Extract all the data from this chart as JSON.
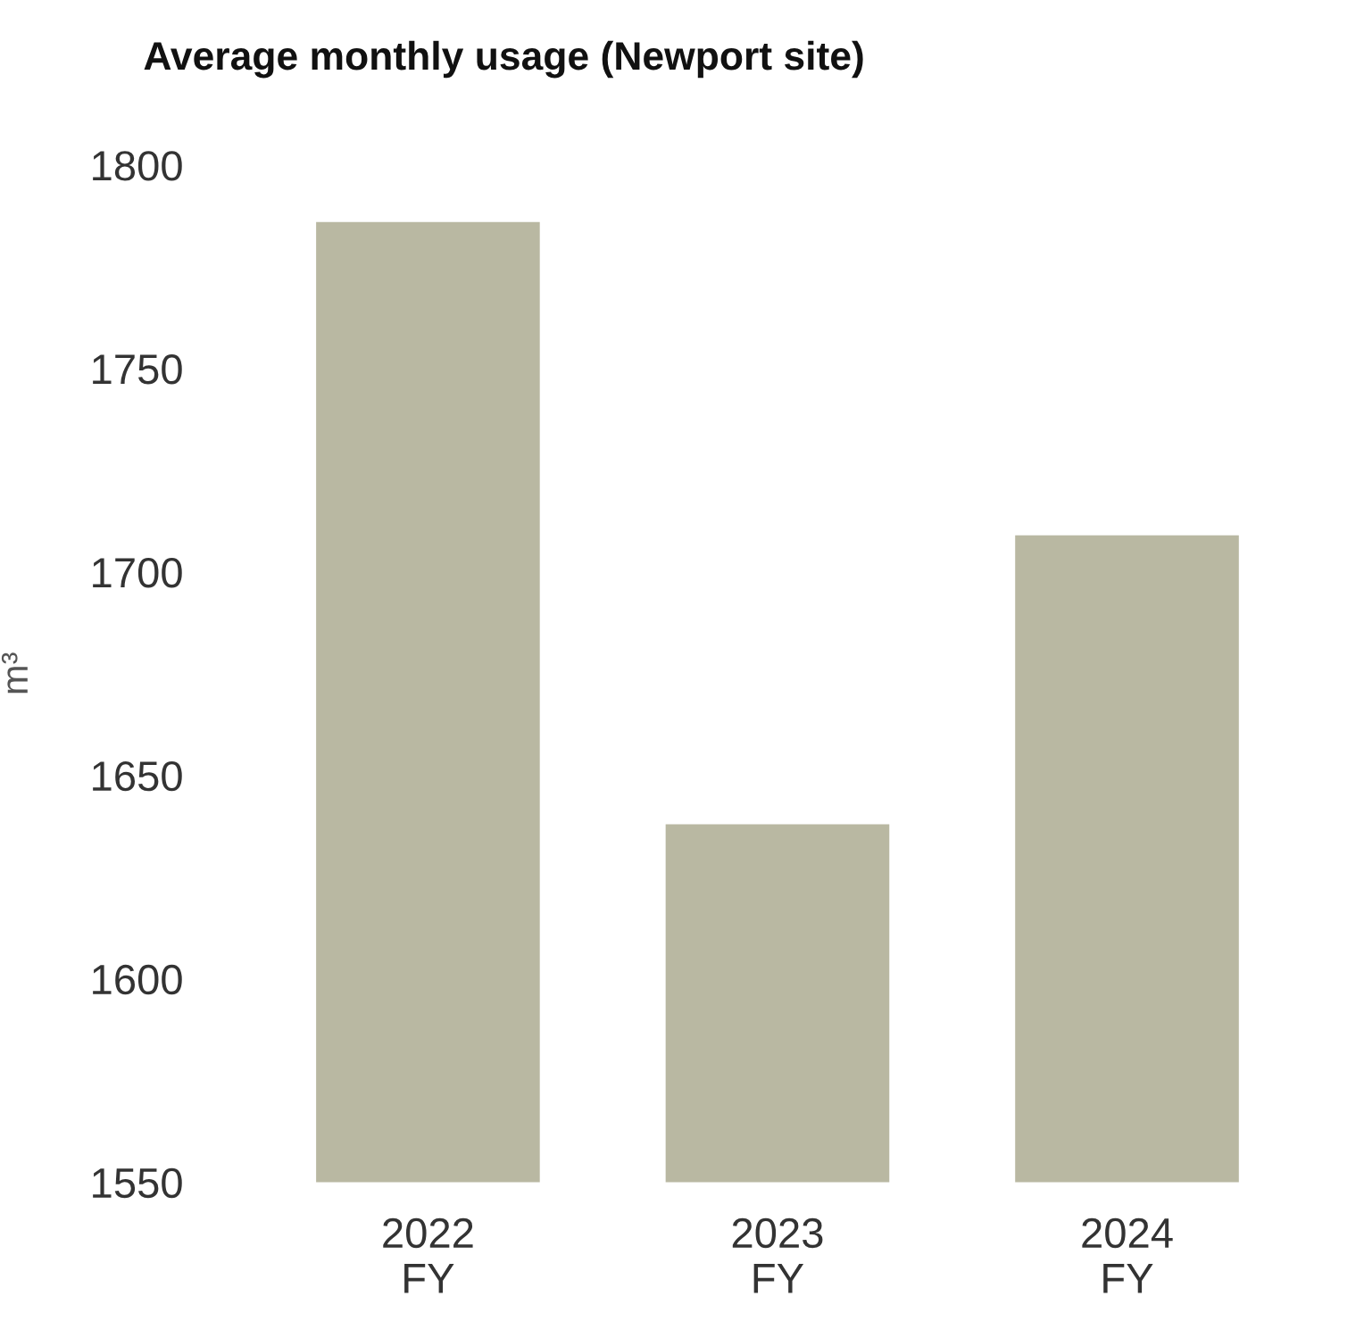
{
  "chart_data": {
    "type": "bar",
    "title": "Average monthly usage (Newport site)",
    "ylabel": "m³",
    "categories": [
      "2022\nFY",
      "2023\nFY",
      "2024\nFY"
    ],
    "values": [
      1786,
      1638,
      1709
    ],
    "color": "#b9b8a2",
    "ylim": [
      1550,
      1800
    ],
    "yticks": [
      1550,
      1600,
      1650,
      1700,
      1750,
      1800
    ],
    "grid": false,
    "legend": false
  }
}
